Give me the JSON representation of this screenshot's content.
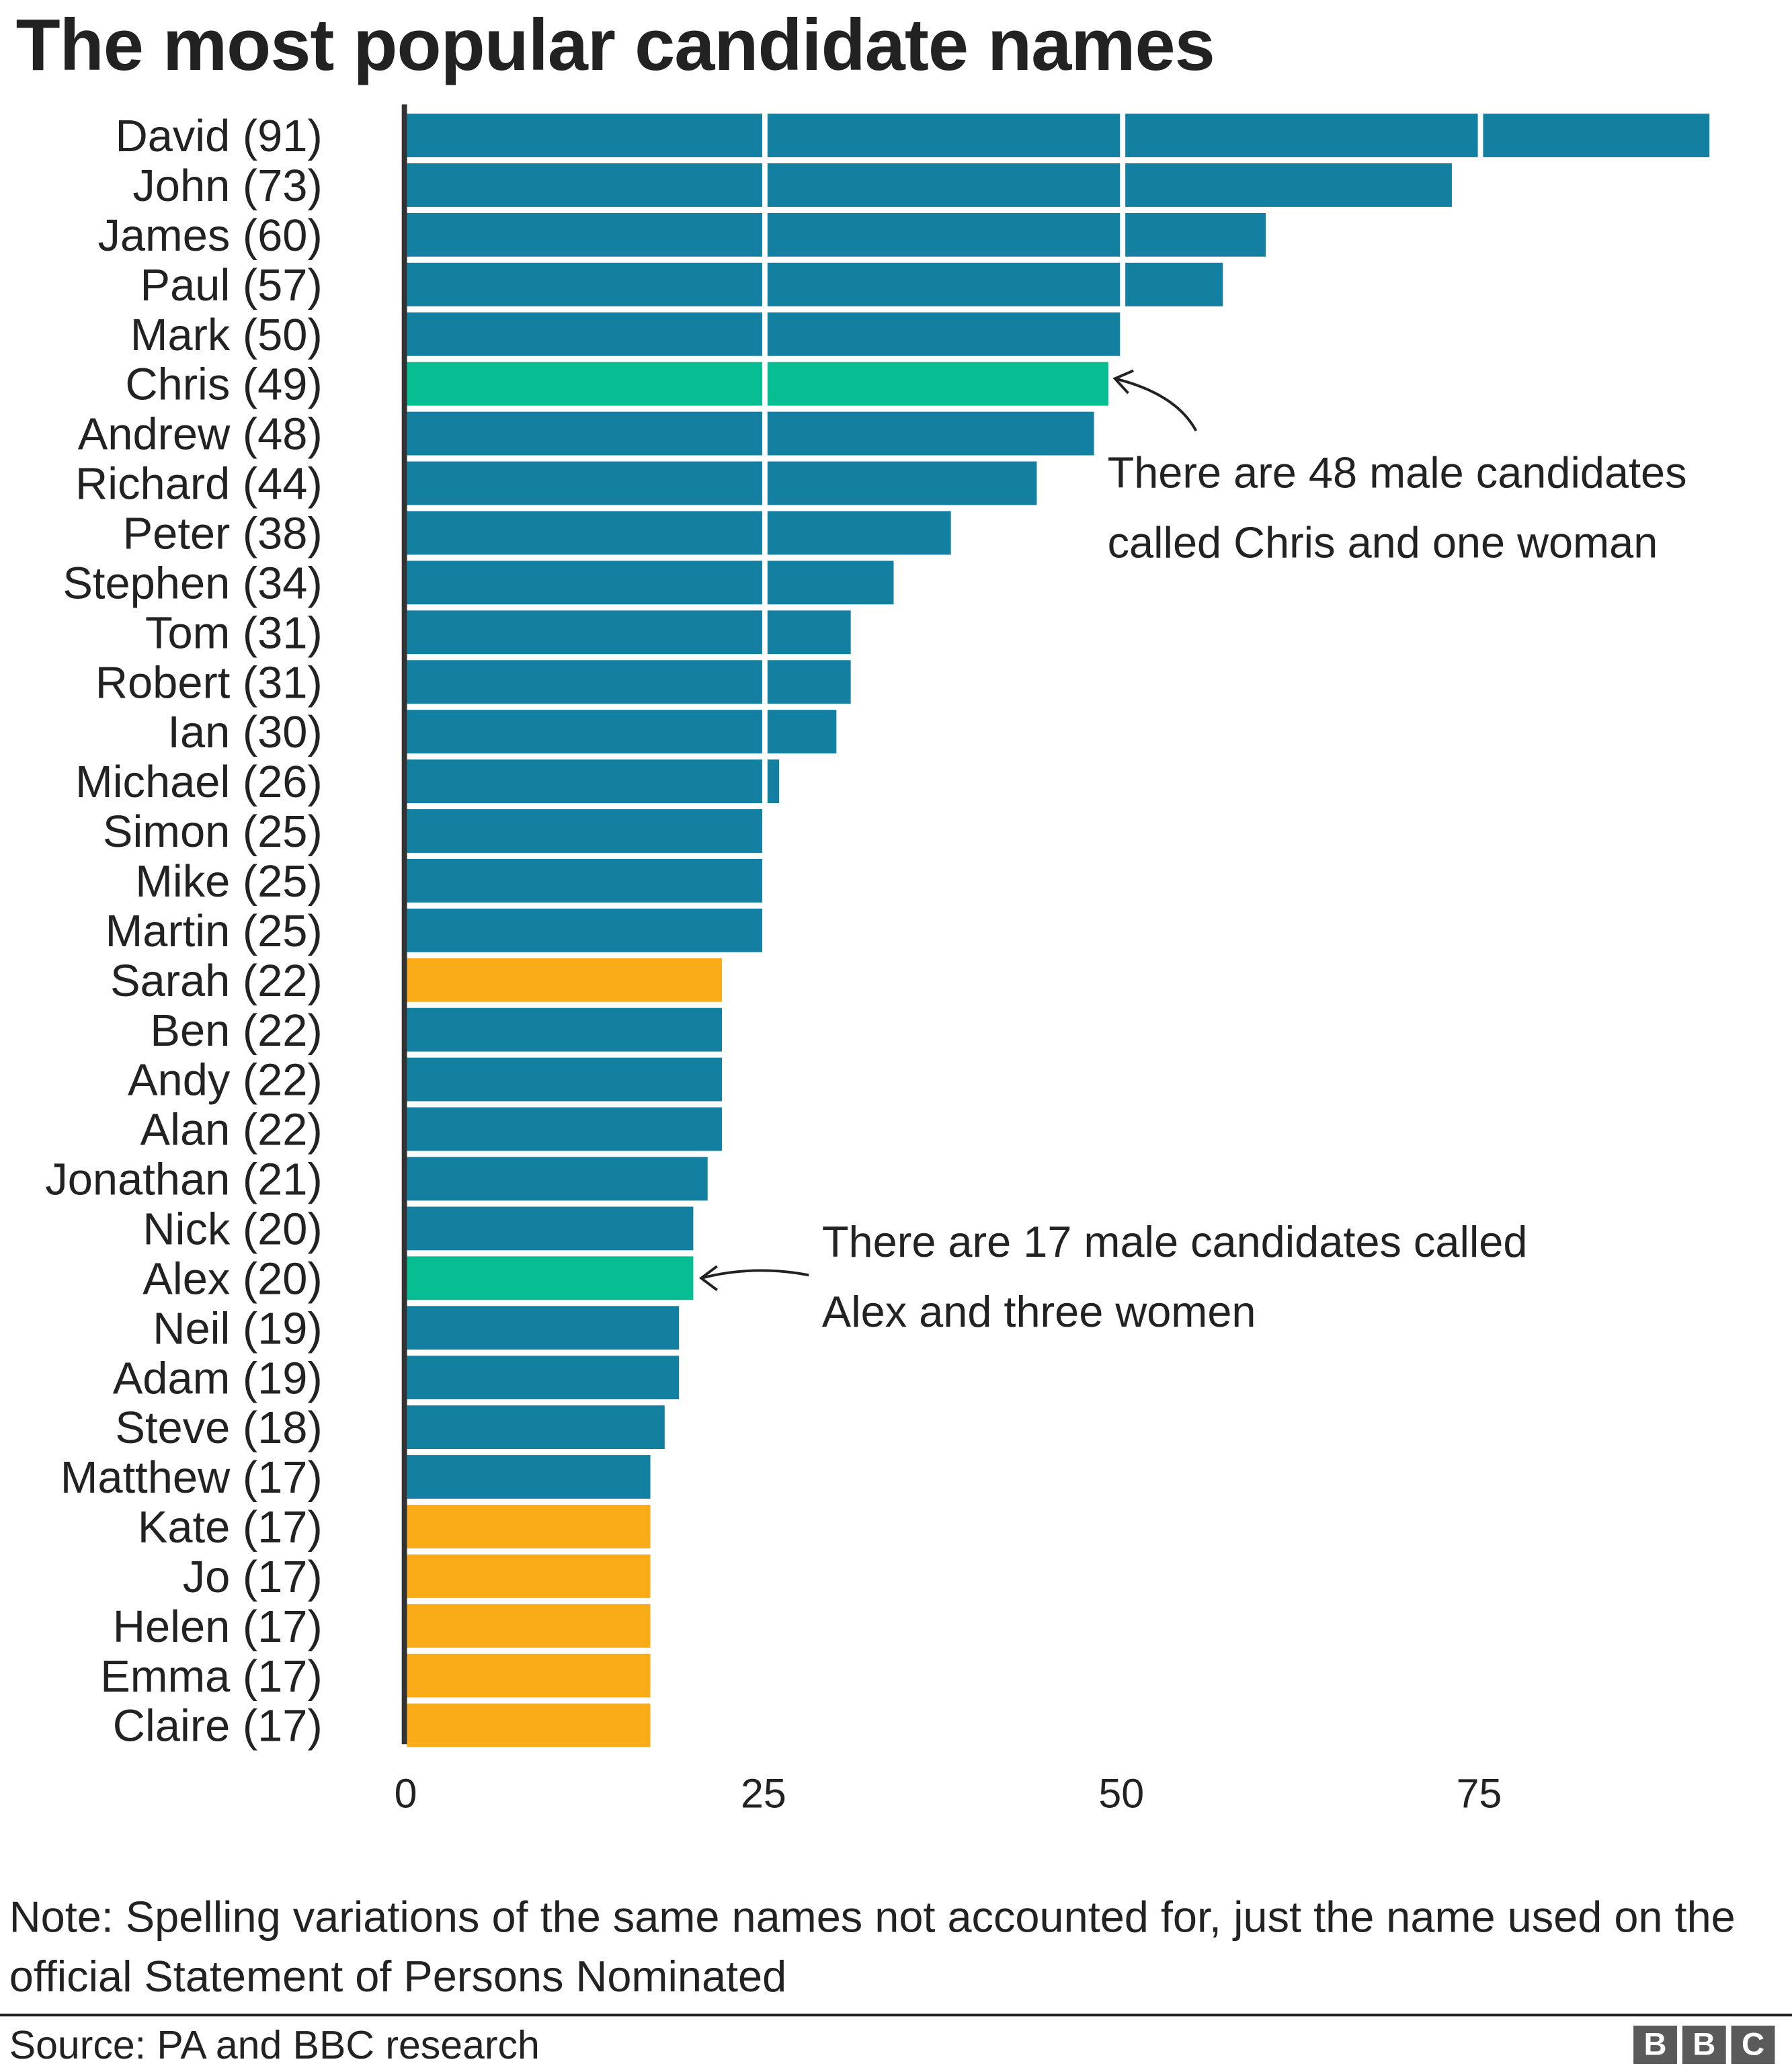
{
  "title": "The most popular candidate names",
  "note": "Note: Spelling variations of the same names not accounted for, just the name used on the official Statement of Persons Nominated",
  "source": "Source: PA and BBC research",
  "logo_text": "BBC",
  "colors": {
    "male": "#1380A1",
    "female": "#FAAB18",
    "mixed": "#06BE91",
    "text": "#222222"
  },
  "chart_data": {
    "type": "bar",
    "orientation": "horizontal",
    "title": "The most popular candidate names",
    "categories": [
      "David (91)",
      "John (73)",
      "James (60)",
      "Paul (57)",
      "Mark (50)",
      "Chris (49)",
      "Andrew (48)",
      "Richard (44)",
      "Peter (38)",
      "Stephen (34)",
      "Tom (31)",
      "Robert (31)",
      "Ian (30)",
      "Michael (26)",
      "Simon (25)",
      "Mike (25)",
      "Martin (25)",
      "Sarah (22)",
      "Ben (22)",
      "Andy (22)",
      "Alan (22)",
      "Jonathan (21)",
      "Nick (20)",
      "Alex (20)",
      "Neil (19)",
      "Adam (19)",
      "Steve (18)",
      "Matthew (17)",
      "Kate (17)",
      "Jo (17)",
      "Helen (17)",
      "Emma (17)",
      "Claire (17)"
    ],
    "values": [
      91,
      73,
      60,
      57,
      50,
      49,
      48,
      44,
      38,
      34,
      31,
      31,
      30,
      26,
      25,
      25,
      25,
      22,
      22,
      22,
      22,
      21,
      20,
      20,
      19,
      19,
      18,
      17,
      17,
      17,
      17,
      17,
      17
    ],
    "groups": [
      "male",
      "male",
      "male",
      "male",
      "male",
      "mixed",
      "male",
      "male",
      "male",
      "male",
      "male",
      "male",
      "male",
      "male",
      "male",
      "male",
      "male",
      "female",
      "male",
      "male",
      "male",
      "male",
      "male",
      "mixed",
      "male",
      "male",
      "male",
      "male",
      "female",
      "female",
      "female",
      "female",
      "female"
    ],
    "xlim": [
      0,
      92
    ],
    "xticks": [
      "0",
      "25",
      "50",
      "75"
    ],
    "grid": true,
    "legend": "none",
    "annotations": [
      {
        "target": "Chris (49)",
        "lines": [
          "There are 48 male candidates",
          "called Chris and one woman"
        ]
      },
      {
        "target": "Alex (20)",
        "lines": [
          "There are 17 male candidates called",
          "Alex and three women"
        ]
      }
    ]
  }
}
